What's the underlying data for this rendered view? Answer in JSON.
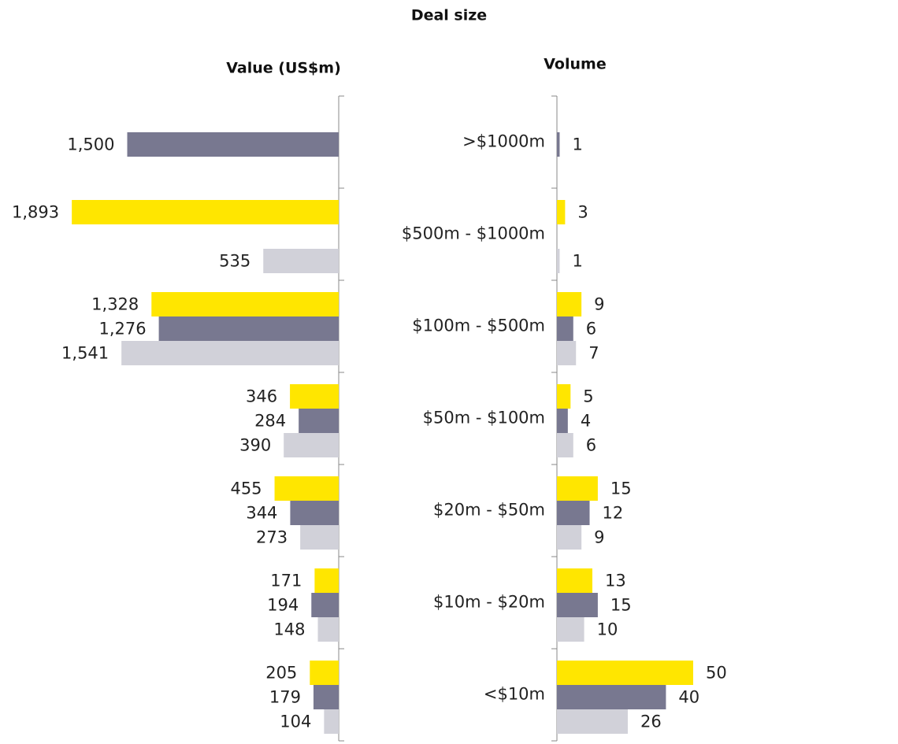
{
  "title": "Deal size",
  "chart_data": [
    {
      "type": "bar",
      "subtitle": "Value (US$m)",
      "orientation": "horizontal",
      "x_reversed": true,
      "xlim": [
        0,
        2000
      ],
      "series": [
        {
          "color": "#ffe600",
          "values": [
            null,
            1893,
            1328,
            346,
            455,
            171,
            205
          ],
          "value_labels": [
            null,
            "1,893",
            "1,328",
            "346",
            "455",
            "171",
            "205"
          ]
        },
        {
          "color": "#787890",
          "values": [
            1500,
            null,
            1276,
            284,
            344,
            194,
            179
          ],
          "value_labels": [
            "1,500",
            null,
            "1,276",
            "284",
            "344",
            "194",
            "179"
          ]
        },
        {
          "color": "#d1d1d9",
          "values": [
            null,
            535,
            1541,
            390,
            273,
            148,
            104
          ],
          "value_labels": [
            null,
            "535",
            "1,541",
            "390",
            "273",
            "148",
            "104"
          ]
        }
      ]
    },
    {
      "type": "bar",
      "subtitle": "Volume",
      "orientation": "horizontal",
      "x_reversed": false,
      "xlim": [
        0,
        50
      ],
      "categories": [
        ">$1000m",
        "$500m - $1000m",
        "$100m - $500m",
        "$50m - $100m",
        "$20m - $50m",
        "$10m - $20m",
        "<$10m"
      ],
      "series": [
        {
          "color": "#ffe600",
          "values": [
            null,
            3,
            9,
            5,
            15,
            13,
            50
          ]
        },
        {
          "color": "#787890",
          "values": [
            1,
            null,
            6,
            4,
            12,
            15,
            40
          ]
        },
        {
          "color": "#d1d1d9",
          "values": [
            null,
            1,
            7,
            6,
            9,
            10,
            26
          ]
        }
      ]
    }
  ]
}
